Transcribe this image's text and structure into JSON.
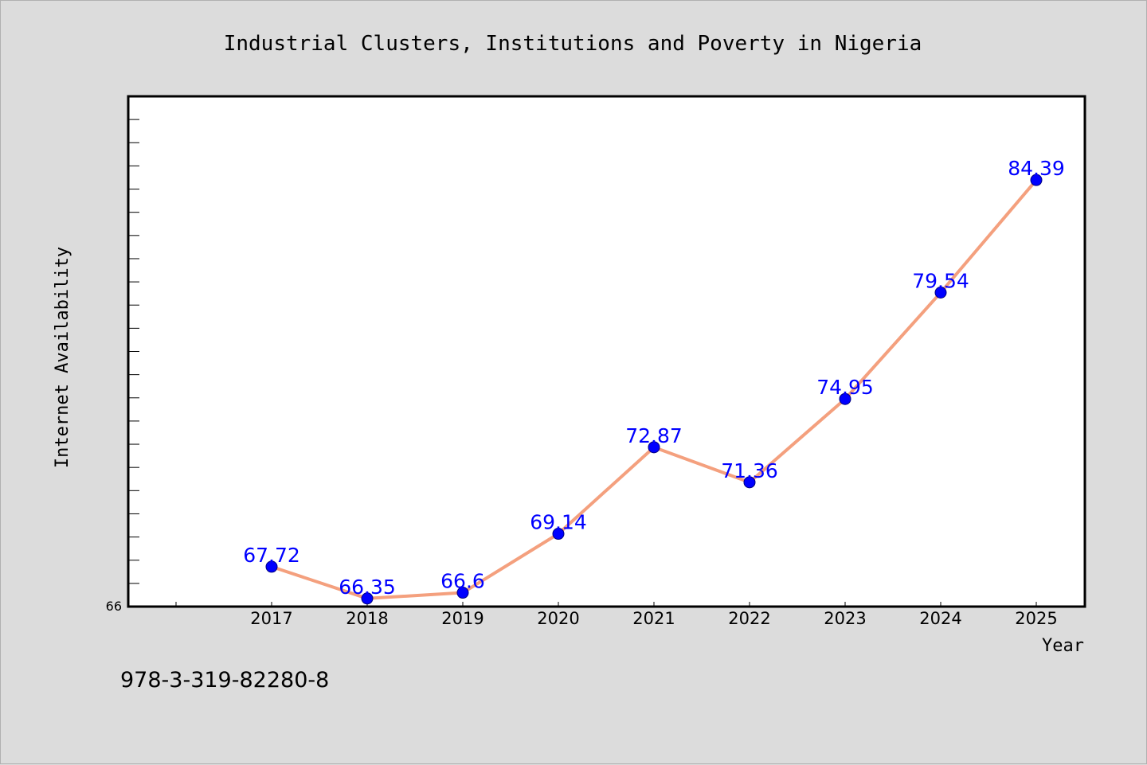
{
  "chart_data": {
    "type": "line",
    "title": "Industrial Clusters, Institutions and Poverty in Nigeria",
    "xlabel": "Year",
    "ylabel": "Internet Availability",
    "categories": [
      "2017",
      "2018",
      "2019",
      "2020",
      "2021",
      "2022",
      "2023",
      "2024",
      "2025"
    ],
    "series": [
      {
        "values": [
          67.72,
          66.35,
          66.6,
          69.14,
          72.87,
          71.36,
          74.95,
          79.54,
          84.39
        ],
        "labels": [
          "67.72",
          "66.35",
          "66.6",
          "69.14",
          "72.87",
          "71.36",
          "74.95",
          "79.54",
          "84.39"
        ],
        "line_color": "#f4a07e",
        "marker_color": "#0000ff"
      }
    ],
    "ylim": [
      66,
      88
    ],
    "y_min_label": "66",
    "grid": false,
    "legend": "none"
  },
  "footer": {
    "isbn": "978-3-319-82280-8"
  },
  "colors": {
    "background": "#dcdcdc",
    "plot_background": "#ffffff",
    "line": "#f4a07e",
    "marker": "#0000ff",
    "data_label": "#0000ff"
  }
}
